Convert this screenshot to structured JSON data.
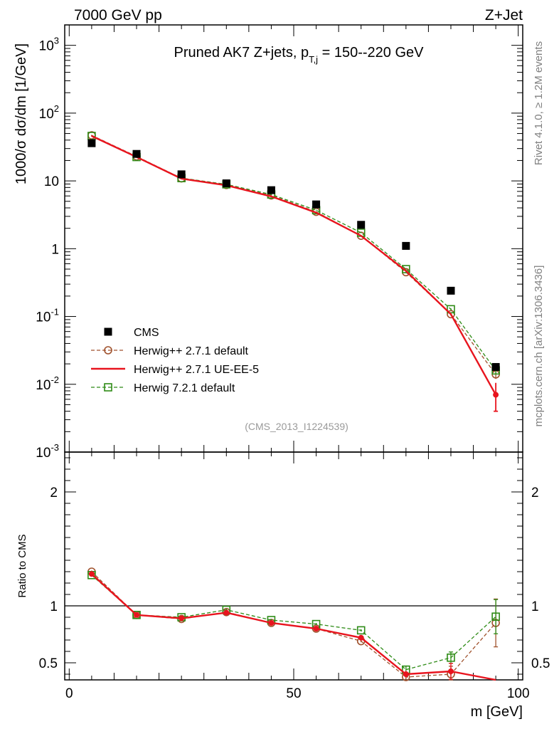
{
  "header": {
    "left": "7000 GeV pp",
    "right": "Z+Jet"
  },
  "side_labels": {
    "rivet": "Rivet 4.1.0, ≥ 1.2M events",
    "mcplots": "mcplots.cern.ch [arXiv:1306.3436]"
  },
  "colors": {
    "cms": "#000000",
    "hpp_default": "#a0522d",
    "hpp_ueee5": "#e8141e",
    "h7": "#2e8b16"
  },
  "chart_data": [
    {
      "type": "line",
      "title": "Pruned AK7 Z+jets, p_{T,j} = 150--220 GeV",
      "title_parts": {
        "main": "Pruned AK7 Z+jets, p",
        "sub": "T,j",
        "rest": " = 150--220 GeV"
      },
      "ylabel": "1000/σ  dσ/dm [1/GeV]",
      "yscale": "log",
      "ylim": [
        0.001,
        2000
      ],
      "xlim": [
        -1,
        101
      ],
      "ytick_labels": [
        "10^-3",
        "10^-2",
        "10^-1",
        "1",
        "10",
        "10^2",
        "10^3"
      ],
      "watermark": "(CMS_2013_I1224539)",
      "legend_position": "lower-left",
      "x": [
        5,
        15,
        25,
        35,
        45,
        55,
        65,
        75,
        85,
        95
      ],
      "series": [
        {
          "name": "CMS",
          "key": "cms",
          "values": [
            36,
            25,
            12.5,
            9.2,
            7.3,
            4.5,
            2.25,
            1.1,
            0.24,
            0.018
          ]
        },
        {
          "name": "Herwig++ 2.7.1 default",
          "key": "hpp_default",
          "values": [
            47,
            23,
            10.9,
            8.7,
            6.1,
            3.5,
            1.55,
            0.45,
            0.108,
            0.014
          ],
          "errors": [
            0.8,
            0.4,
            0.2,
            0.15,
            0.1,
            0.06,
            0.03,
            0.01,
            0.004,
            0.002
          ]
        },
        {
          "name": "Herwig++ 2.7.1 UE-EE-5",
          "key": "hpp_ueee5",
          "values": [
            46,
            22.5,
            10.8,
            8.6,
            5.9,
            3.4,
            1.55,
            0.47,
            0.108,
            0.007
          ],
          "errors": [
            0.8,
            0.4,
            0.2,
            0.15,
            0.1,
            0.06,
            0.03,
            0.01,
            0.005,
            0.003
          ]
        },
        {
          "name": "Herwig 7.2.1 default",
          "key": "h7",
          "values": [
            46,
            22.5,
            11.0,
            8.9,
            6.3,
            3.7,
            1.72,
            0.5,
            0.128,
            0.016
          ],
          "errors": [
            0.8,
            0.4,
            0.2,
            0.15,
            0.1,
            0.06,
            0.03,
            0.01,
            0.004,
            0.002
          ]
        }
      ]
    },
    {
      "type": "line",
      "ylabel": "Ratio to CMS",
      "xlabel": "m [GeV]",
      "ylim": [
        0.35,
        2.35
      ],
      "xlim": [
        -1,
        101
      ],
      "ytick_labels": [
        "0.5",
        "1",
        "2"
      ],
      "xtick_labels": [
        "0",
        "50",
        "100"
      ],
      "reference_line": 1,
      "x": [
        5,
        15,
        25,
        35,
        45,
        55,
        65,
        75,
        85,
        95
      ],
      "series": [
        {
          "name": "Herwig++ 2.7.1 default",
          "key": "hpp_default",
          "values": [
            1.3,
            0.92,
            0.885,
            0.945,
            0.85,
            0.8,
            0.69,
            0.375,
            0.4,
            0.85
          ],
          "errors": [
            0.01,
            0.01,
            0.01,
            0.01,
            0.01,
            0.01,
            0.01,
            0.03,
            0.07,
            0.21
          ]
        },
        {
          "name": "Herwig++ 2.7.1 UE-EE-5",
          "key": "hpp_ueee5",
          "values": [
            1.28,
            0.92,
            0.89,
            0.94,
            0.85,
            0.8,
            0.72,
            0.4,
            0.425,
            0.33
          ],
          "errors": [
            0.01,
            0.01,
            0.01,
            0.01,
            0.01,
            0.01,
            0.02,
            0.03,
            0.07,
            0.0
          ]
        },
        {
          "name": "Herwig 7.2.1 default",
          "key": "h7",
          "values": [
            1.27,
            0.92,
            0.9,
            0.965,
            0.875,
            0.84,
            0.785,
            0.44,
            0.545,
            0.905
          ],
          "errors": [
            0.01,
            0.01,
            0.01,
            0.01,
            0.01,
            0.01,
            0.01,
            0.03,
            0.05,
            0.15
          ]
        }
      ]
    }
  ]
}
